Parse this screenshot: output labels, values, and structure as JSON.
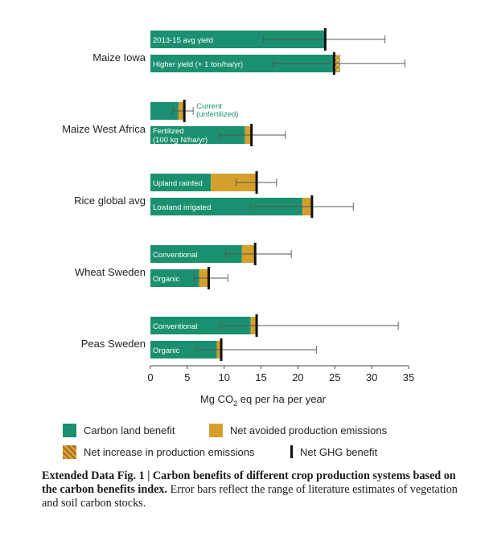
{
  "chart_data": {
    "type": "bar",
    "orientation": "horizontal",
    "stacked": true,
    "xlabel_pre": "Mg CO",
    "xlabel_sub": "2",
    "xlabel_post": " eq per ha per year",
    "xlim": [
      0,
      35
    ],
    "xticks": [
      "0",
      "5",
      "10",
      "15",
      "20",
      "25",
      "30",
      "35"
    ],
    "grid": false,
    "series_names": [
      "Carbon land benefit",
      "Net avoided production emissions",
      "Net increase in production emissions"
    ],
    "series_colors": {
      "carbon": "#1a9070",
      "avoided": "#d4a02b",
      "increase": "#d4a02b"
    },
    "groups": [
      {
        "name": "Maize Iowa",
        "bars": [
          {
            "label": "2013-15 avg yield",
            "label_inside": true,
            "carbon": 23.7,
            "avoided": 0,
            "increase": 0,
            "net": 23.7,
            "err": [
              15.3,
              31.8
            ]
          },
          {
            "label": "Higher yield (+ 1 ton/ha/yr)",
            "label_inside": true,
            "carbon": 25.7,
            "avoided": 0,
            "increase": 0.8,
            "net": 24.9,
            "err": [
              16.6,
              34.5
            ]
          }
        ]
      },
      {
        "name": "Maize West Africa",
        "bars": [
          {
            "label": "Current\n(unfertilized)",
            "label_inside": false,
            "carbon": 3.8,
            "avoided": 0.8,
            "increase": 0,
            "net": 4.6,
            "err": [
              3.0,
              5.8
            ]
          },
          {
            "label": "Fertilized\n(100 kg N/ha/yr)",
            "label_inside": true,
            "carbon": 12.8,
            "avoided": 0.9,
            "increase": 0,
            "net": 13.7,
            "err": [
              9.3,
              18.3
            ]
          }
        ]
      },
      {
        "name": "Rice global avg",
        "bars": [
          {
            "label": "Upland rainfed",
            "label_inside": true,
            "carbon": 8.2,
            "avoided": 6.2,
            "increase": 0,
            "net": 14.4,
            "err": [
              11.6,
              17.1
            ]
          },
          {
            "label": "Lowland irrigated",
            "label_inside": true,
            "carbon": 20.6,
            "avoided": 1.3,
            "increase": 0,
            "net": 21.9,
            "err": [
              13.5,
              27.5
            ]
          }
        ]
      },
      {
        "name": "Wheat Sweden",
        "bars": [
          {
            "label": "Conventional",
            "label_inside": true,
            "carbon": 12.4,
            "avoided": 1.8,
            "increase": 0,
            "net": 14.2,
            "err": [
              10.2,
              19.1
            ]
          },
          {
            "label": "Organic",
            "label_inside": true,
            "carbon": 6.6,
            "avoided": 1.3,
            "increase": 0,
            "net": 7.9,
            "err": [
              5.9,
              10.5
            ]
          }
        ]
      },
      {
        "name": "Peas Sweden",
        "bars": [
          {
            "label": "Conventional",
            "label_inside": true,
            "carbon": 13.6,
            "avoided": 0.8,
            "increase": 0,
            "net": 14.4,
            "err": [
              9.4,
              33.6
            ]
          },
          {
            "label": "Organic",
            "label_inside": true,
            "carbon": 9.0,
            "avoided": 0.6,
            "increase": 0,
            "net": 9.6,
            "err": [
              6.2,
              22.5
            ]
          }
        ]
      }
    ]
  },
  "legend": {
    "carbon": "Carbon land benefit",
    "avoided": "Net avoided production emissions",
    "increase": "Net increase in production emissions",
    "net": "Net GHG benefit"
  },
  "caption": {
    "bold": "Extended Data Fig. 1 | Carbon benefits of different crop production systems based on the carbon benefits index.",
    "text": " Error bars reflect the range of literature estimates of vegetation and soil carbon stocks."
  }
}
